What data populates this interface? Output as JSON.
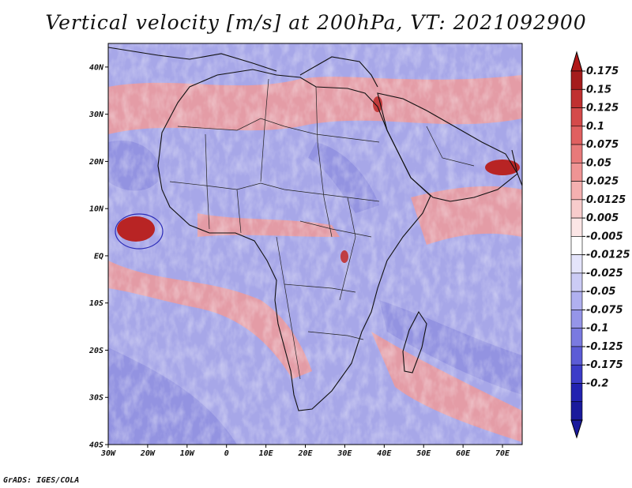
{
  "title": "Vertical velocity [m/s] at 200hPa, VT: 2021092900",
  "credit": "GrADS: IGES/COLA",
  "map": {
    "region": "Africa",
    "lon_range": [
      -30,
      75
    ],
    "lat_range": [
      -40,
      45
    ],
    "lat_ticks": [
      {
        "value": 40,
        "label": "40N"
      },
      {
        "value": 30,
        "label": "30N"
      },
      {
        "value": 20,
        "label": "20N"
      },
      {
        "value": 10,
        "label": "10N"
      },
      {
        "value": 0,
        "label": "EQ"
      },
      {
        "value": -10,
        "label": "10S"
      },
      {
        "value": -20,
        "label": "20S"
      },
      {
        "value": -30,
        "label": "30S"
      },
      {
        "value": -40,
        "label": "40S"
      }
    ],
    "lon_ticks": [
      {
        "value": -30,
        "label": "30W"
      },
      {
        "value": -20,
        "label": "20W"
      },
      {
        "value": -10,
        "label": "10W"
      },
      {
        "value": 0,
        "label": "0"
      },
      {
        "value": 10,
        "label": "10E"
      },
      {
        "value": 20,
        "label": "20E"
      },
      {
        "value": 30,
        "label": "30E"
      },
      {
        "value": 40,
        "label": "40E"
      },
      {
        "value": 50,
        "label": "50E"
      },
      {
        "value": 60,
        "label": "60E"
      },
      {
        "value": 70,
        "label": "70E"
      }
    ]
  },
  "colorbar": {
    "levels": [
      {
        "label": "0.175",
        "color": "#a51c1c"
      },
      {
        "label": "0.15",
        "color": "#c03030"
      },
      {
        "label": "0.125",
        "color": "#d44a4a"
      },
      {
        "label": "0.1",
        "color": "#e06060"
      },
      {
        "label": "0.075",
        "color": "#e87a7a"
      },
      {
        "label": "0.05",
        "color": "#ef9494"
      },
      {
        "label": "0.025",
        "color": "#f4b0b0"
      },
      {
        "label": "0.0125",
        "color": "#f8cccc"
      },
      {
        "label": "0.005",
        "color": "#fce6e6"
      },
      {
        "label": "-0.005",
        "color": "#ffffff"
      },
      {
        "label": "-0.0125",
        "color": "#e4e4fb"
      },
      {
        "label": "-0.025",
        "color": "#cbcbf5"
      },
      {
        "label": "-0.05",
        "color": "#b0b0ef"
      },
      {
        "label": "-0.075",
        "color": "#9595e8"
      },
      {
        "label": "-0.1",
        "color": "#7a7ae0"
      },
      {
        "label": "-0.125",
        "color": "#5c5cd6"
      },
      {
        "label": "-0.175",
        "color": "#3c3cc8"
      },
      {
        "label": "-0.2",
        "color": "#2222b0"
      }
    ],
    "top_color": "#b01818",
    "bottom_color": "#1a1a9c"
  }
}
